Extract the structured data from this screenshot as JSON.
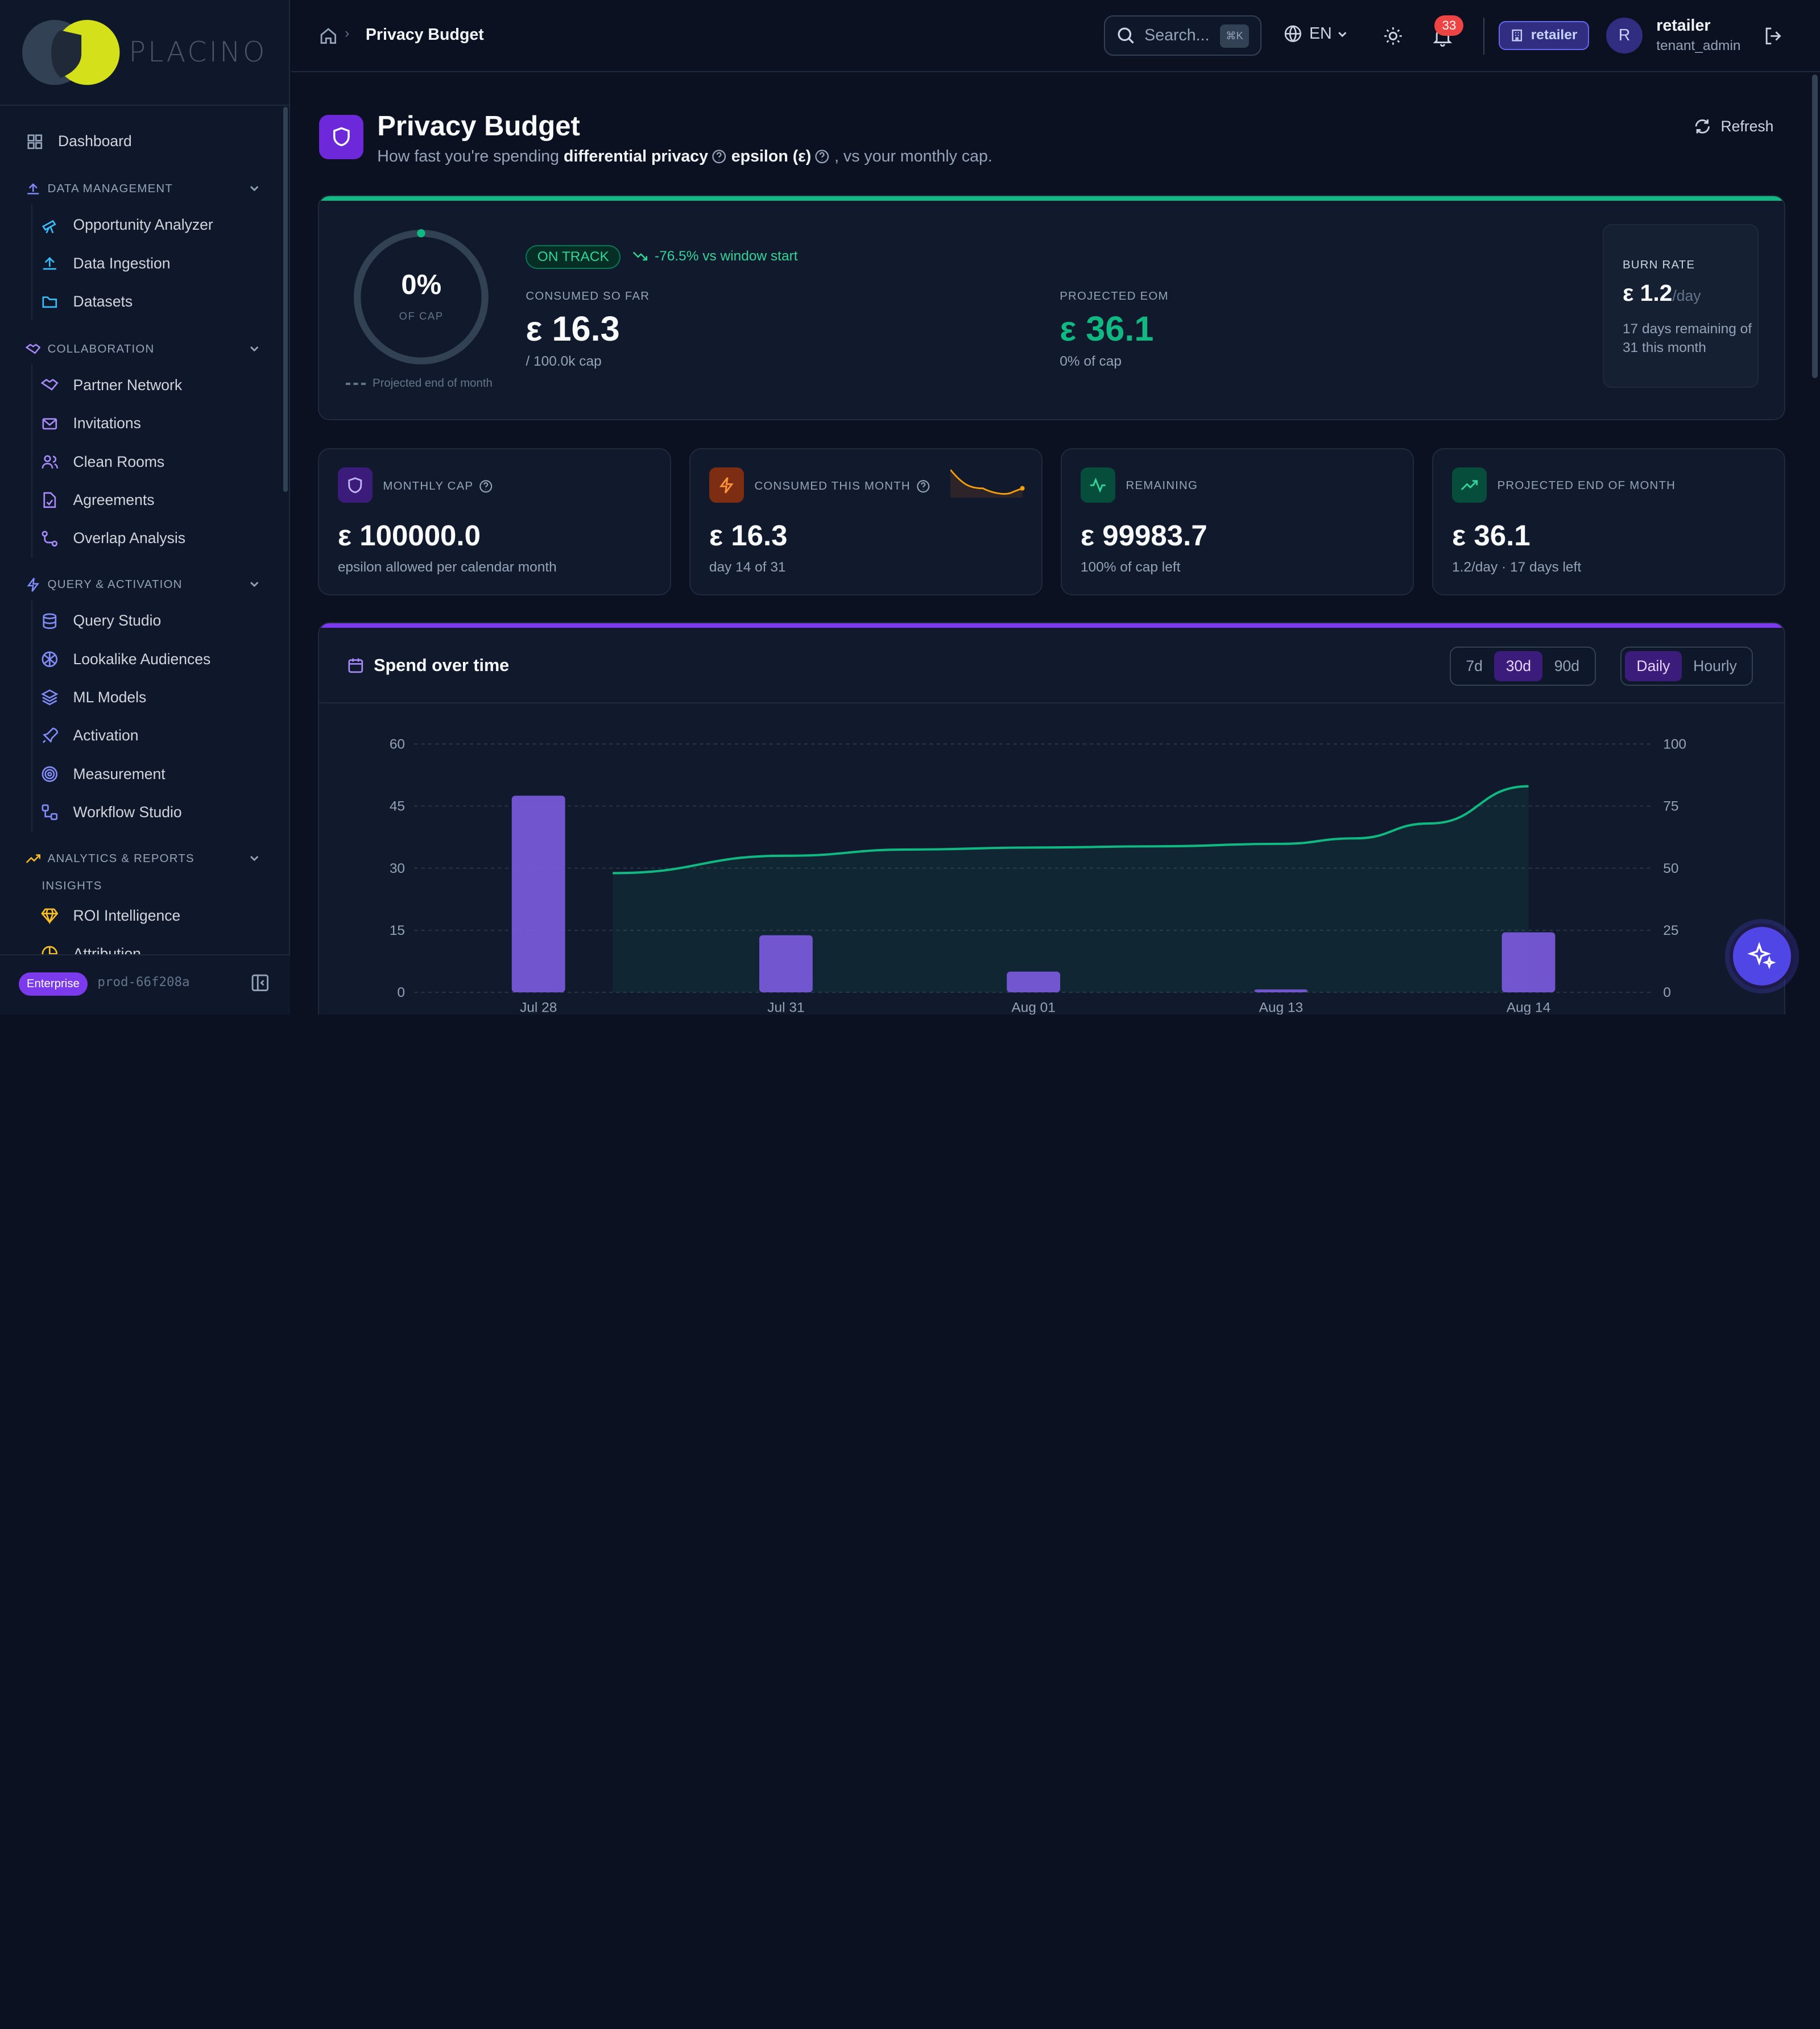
{
  "brand": {
    "name": "PLACINO"
  },
  "sidebar": {
    "dashboard": "Dashboard",
    "sections": [
      {
        "title": "DATA MANAGEMENT",
        "items": [
          "Opportunity Analyzer",
          "Data Ingestion",
          "Datasets"
        ]
      },
      {
        "title": "COLLABORATION",
        "items": [
          "Partner Network",
          "Invitations",
          "Clean Rooms",
          "Agreements",
          "Overlap Analysis"
        ]
      },
      {
        "title": "QUERY & ACTIVATION",
        "items": [
          "Query Studio",
          "Lookalike Audiences",
          "ML Models",
          "Activation",
          "Measurement",
          "Workflow Studio"
        ]
      },
      {
        "title": "ANALYTICS & REPORTS",
        "sublabel": "INSIGHTS",
        "items": [
          "ROI Intelligence",
          "Attribution"
        ]
      }
    ],
    "footer": {
      "plan": "Enterprise",
      "env": "prod-66f208a"
    }
  },
  "header": {
    "breadcrumb": "Privacy Budget",
    "search_placeholder": "Search...",
    "search_shortcut": "⌘K",
    "language": "EN",
    "notifications": "33",
    "tenant": "retailer",
    "avatar_initial": "R",
    "user_name": "retailer",
    "user_role": "tenant_admin"
  },
  "page": {
    "title": "Privacy Budget",
    "subtitle_pre": "How fast you're spending",
    "subtitle_term1": "differential privacy",
    "subtitle_term2": "epsilon (ε)",
    "subtitle_post": ", vs your monthly cap.",
    "refresh": "Refresh"
  },
  "overview": {
    "gauge_value": "0%",
    "gauge_label": "OF CAP",
    "gauge_fraction": 0.0,
    "gauge_note": "Projected end of month",
    "status": "ON TRACK",
    "trend": "-76.5% vs window start",
    "consumed_label": "CONSUMED SO FAR",
    "consumed_value": "ε 16.3",
    "consumed_sub": "/ 100.0k cap",
    "projected_label": "PROJECTED EOM",
    "projected_value": "ε 36.1",
    "projected_sub": "0% of cap",
    "burn_label": "BURN RATE",
    "burn_value": "ε 1.2",
    "burn_unit": "/day",
    "burn_note": "17 days remaining of 31 this month"
  },
  "stats": [
    {
      "label": "MONTHLY CAP",
      "value": "ε 100000.0",
      "sub": "epsilon allowed per calendar month",
      "icon": "shield-icon",
      "color": "#7c3aed"
    },
    {
      "label": "CONSUMED THIS MONTH",
      "value": "ε 16.3",
      "sub": "day 14 of 31",
      "icon": "bolt-icon",
      "color": "#f97316"
    },
    {
      "label": "REMAINING",
      "value": "ε 99983.7",
      "sub": "100% of cap left",
      "icon": "activity-icon",
      "color": "#10b981"
    },
    {
      "label": "PROJECTED END OF MONTH",
      "value": "ε 36.1",
      "sub": "1.2/day · 17 days left",
      "icon": "trending-up-icon",
      "color": "#10b981"
    }
  ],
  "chart": {
    "title": "Spend over time",
    "ranges": [
      "7d",
      "30d",
      "90d"
    ],
    "active_range": "30d",
    "granularity": [
      "Daily",
      "Hourly"
    ],
    "active_granularity": "Daily"
  },
  "chart_data": {
    "type": "bar",
    "categories": [
      "Jul 28",
      "Jul 31",
      "Aug 01",
      "Aug 13",
      "Aug 14"
    ],
    "series": [
      {
        "type": "bar",
        "axis": "left",
        "values": [
          47.5,
          13.8,
          5.0,
          0.7,
          14.5
        ]
      },
      {
        "type": "area",
        "axis": "right",
        "values": [
          [
            0.3,
            48.0
          ],
          [
            1.0,
            55.0
          ],
          [
            1.5,
            57.5
          ],
          [
            2.0,
            58.3
          ],
          [
            2.5,
            58.8
          ],
          [
            3.0,
            59.8
          ],
          [
            3.3,
            62.0
          ],
          [
            3.6,
            68.0
          ],
          [
            4.0,
            83.0
          ]
        ]
      }
    ],
    "ylim_left": [
      0,
      60
    ],
    "yticks_left": [
      0,
      15,
      30,
      45,
      60
    ],
    "ylim_right": [
      0,
      100
    ],
    "yticks_right": [
      0,
      25,
      50,
      75,
      100
    ],
    "grid": true
  },
  "colors": {
    "accent": "#7c3aed",
    "success": "#10b981",
    "bar": "#7c5ce0",
    "line": "#10b981"
  }
}
